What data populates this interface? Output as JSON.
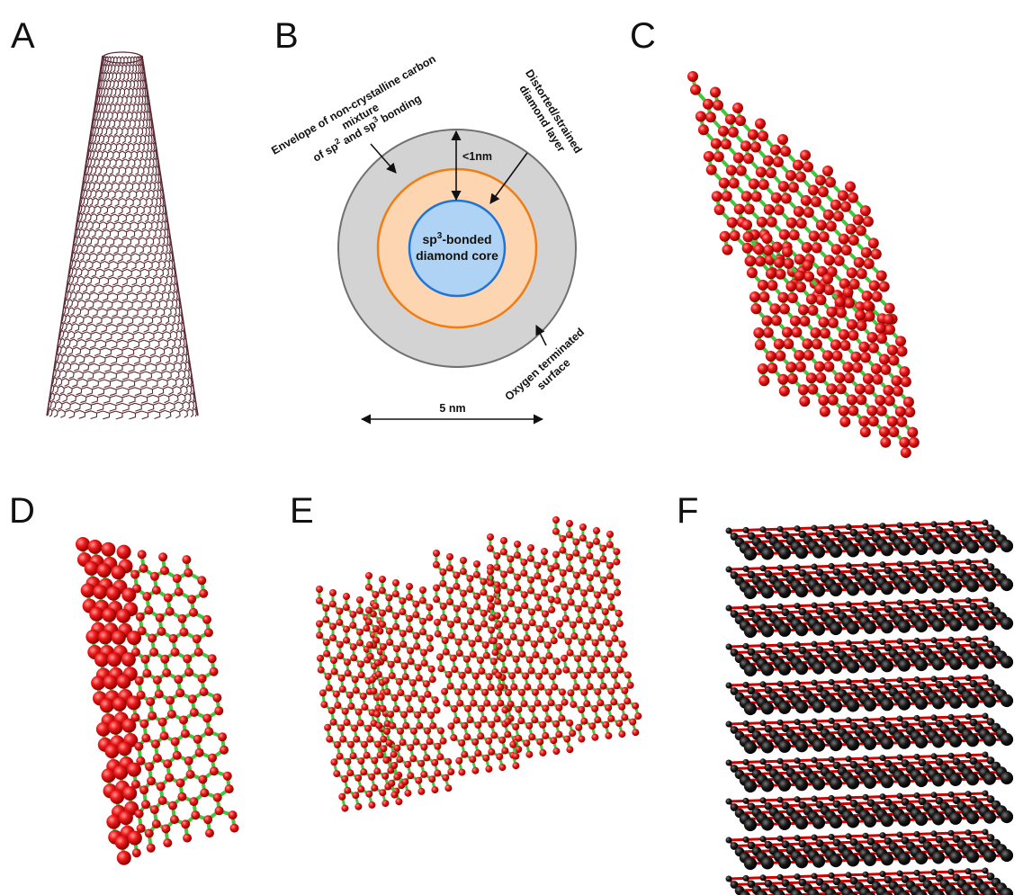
{
  "panels": {
    "a": {
      "label": "A"
    },
    "b": {
      "label": "B"
    },
    "c": {
      "label": "C"
    },
    "d": {
      "label": "D"
    },
    "e": {
      "label": "E"
    },
    "f": {
      "label": "F"
    }
  },
  "diagram_b": {
    "envelope_line1": "Envelope of non-crystalline carbon",
    "envelope_line2": "mixture",
    "envelope_line3a": "of sp",
    "envelope_sup1": "2",
    "envelope_line3b": " and sp",
    "envelope_sup2": "3",
    "envelope_line3c": " bonding",
    "distorted_line1": "Distorted/strained",
    "distorted_line2": "diamond layer",
    "thickness_label": "<1nm",
    "core_line1a": "sp",
    "core_sup": "3",
    "core_line1b": "-bonded",
    "core_line2": "diamond core",
    "oxygen_line1": "Oxygen terminated",
    "oxygen_line2": "surface",
    "scale_label": "5 nm",
    "colors": {
      "envelope": "#d3d3d3",
      "envelope_stroke": "#707070",
      "layer": "#fdd5b1",
      "layer_stroke": "#f07d14",
      "core": "#aed3f5",
      "core_stroke": "#1f74d6"
    }
  },
  "colors": {
    "nanotube_line": "#5a2a35",
    "atom_red": "#e01010",
    "bond_green": "#3fc83f",
    "atom_black": "#151515",
    "bond_red": "#d00000"
  }
}
